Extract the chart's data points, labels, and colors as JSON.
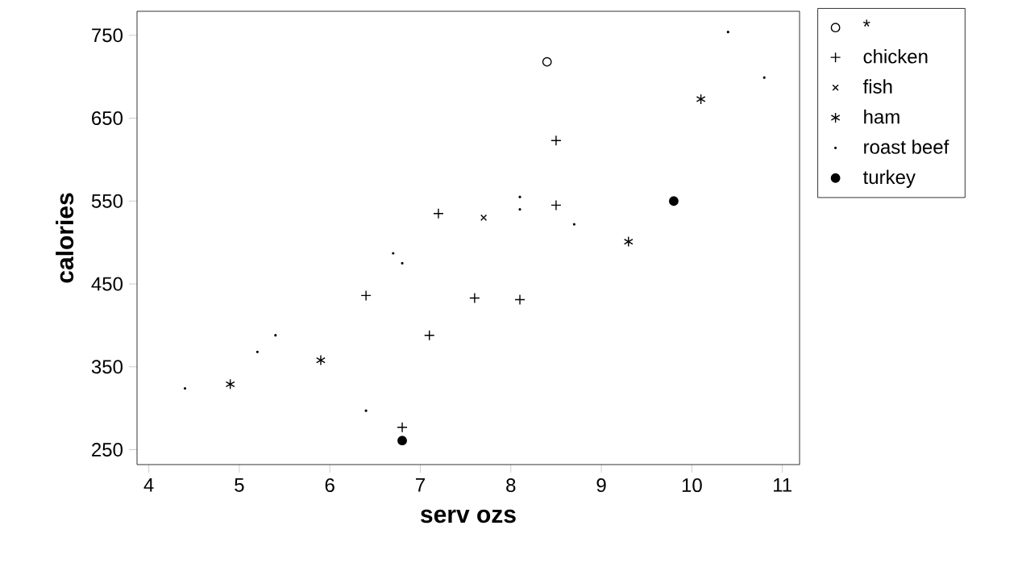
{
  "chart_data": {
    "type": "scatter",
    "xlabel": "serv ozs",
    "ylabel": "calories",
    "xlim": [
      3.87,
      11.19
    ],
    "ylim": [
      232,
      779
    ],
    "xticks": [
      4,
      5,
      6,
      7,
      8,
      9,
      10,
      11
    ],
    "yticks": [
      250,
      350,
      450,
      550,
      650,
      750
    ],
    "grid": false,
    "legend": "top right",
    "series": [
      {
        "name": "*",
        "color": "#000000",
        "marker": "circle",
        "x": [
          8.4
        ],
        "values": [
          718
        ]
      },
      {
        "name": "chicken",
        "color": "#000000",
        "marker": "plus",
        "x": [
          6.4,
          7.6,
          8.1,
          7.1,
          6.8,
          8.5,
          7.2,
          8.5
        ],
        "values": [
          436,
          433,
          431,
          388,
          277,
          623,
          535,
          545
        ]
      },
      {
        "name": "fish",
        "color": "#000000",
        "marker": "x",
        "x": [
          7.7
        ],
        "values": [
          530
        ]
      },
      {
        "name": "ham",
        "color": "#000000",
        "marker": "cross",
        "x": [
          9.3,
          5.9,
          4.9,
          10.1
        ],
        "values": [
          501,
          358,
          329,
          673
        ]
      },
      {
        "name": "roast beef",
        "color": "#000000",
        "marker": "point",
        "x": [
          6.7,
          6.8,
          5.4,
          5.2,
          4.4,
          6.4,
          10.4,
          10.8,
          8.1,
          8.1,
          8.7
        ],
        "values": [
          487,
          475,
          388,
          368,
          324,
          297,
          754,
          699,
          555,
          540,
          522
        ]
      },
      {
        "name": "turkey",
        "color": "#000000",
        "marker": "filled circle",
        "x": [
          6.8,
          9.8
        ],
        "values": [
          261,
          550
        ]
      }
    ]
  }
}
